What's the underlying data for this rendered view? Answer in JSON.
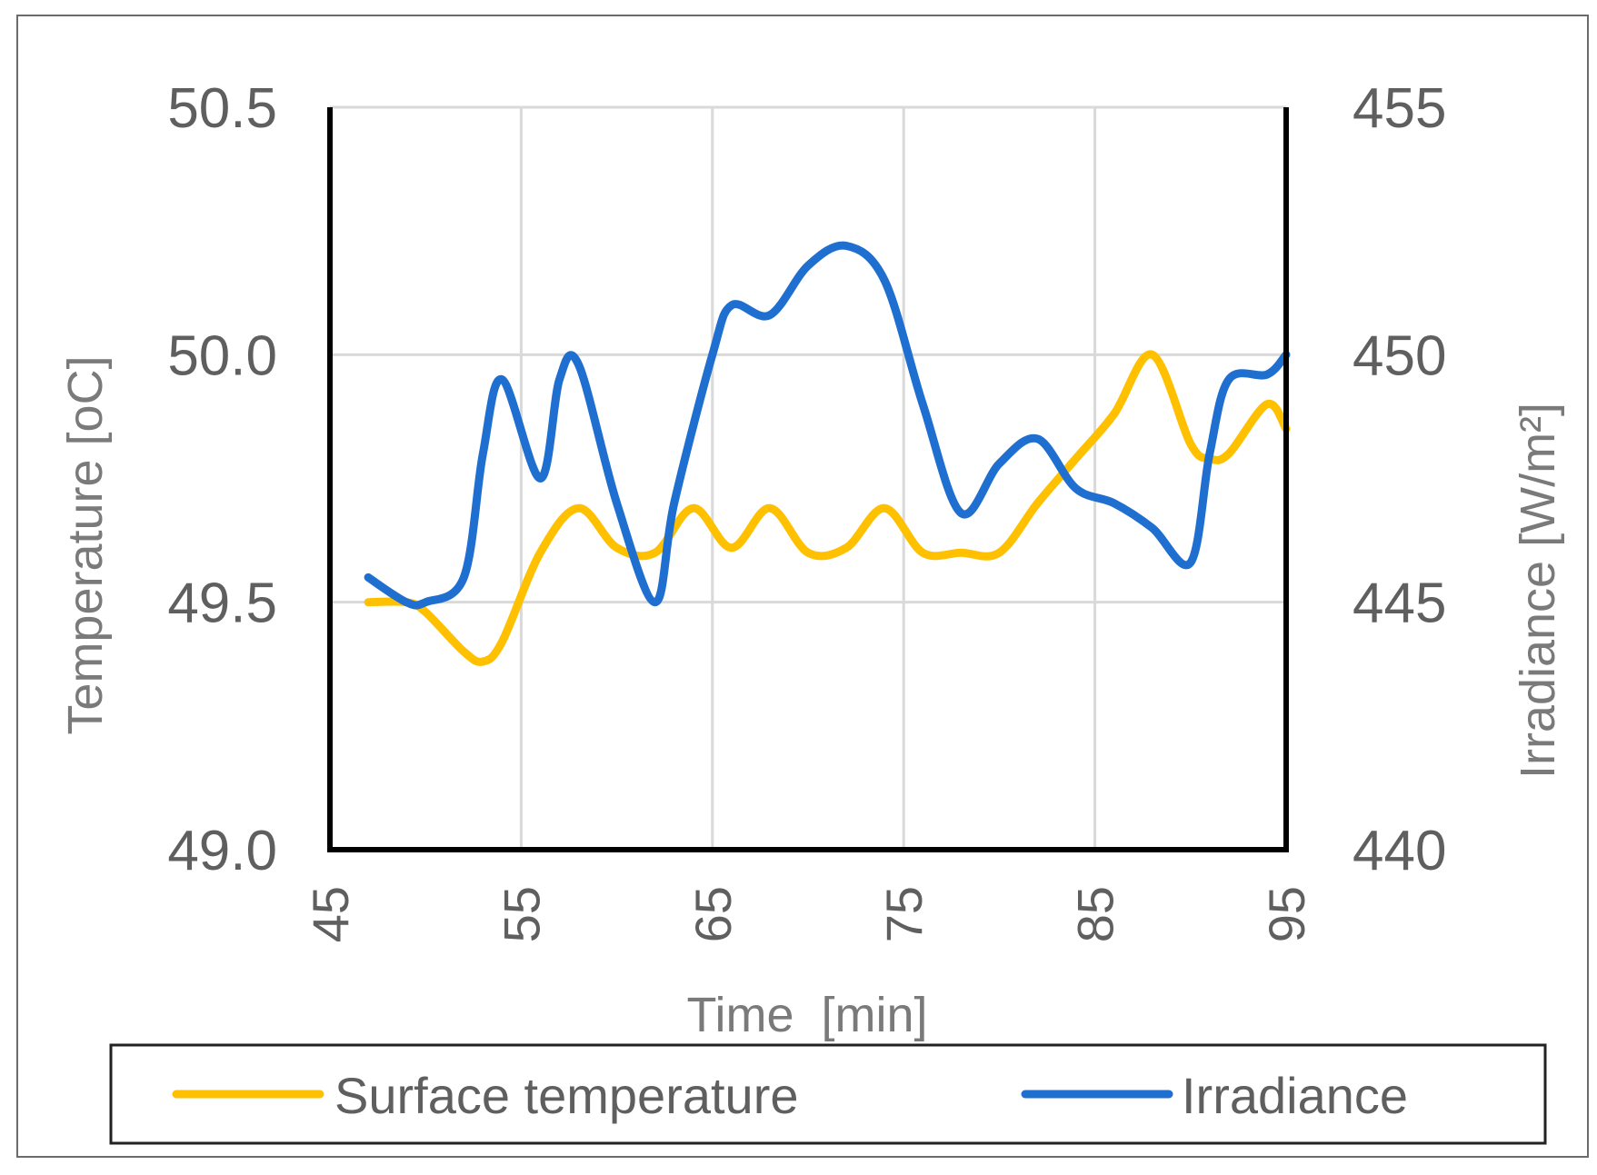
{
  "chart_data": {
    "type": "line",
    "xlabel": "Time  [min]",
    "ylabel": "Temperature [oC]",
    "y2label": "Irradiance [W/m²]",
    "xlim": [
      45,
      95
    ],
    "ylim": [
      49.0,
      50.5
    ],
    "y2lim": [
      440,
      455
    ],
    "x_ticks": [
      "45",
      "55",
      "65",
      "75",
      "85",
      "95"
    ],
    "y_ticks": [
      "49.0",
      "49.5",
      "50.0",
      "50.5"
    ],
    "y2_ticks": [
      "440",
      "445",
      "450",
      "455"
    ],
    "grid": true,
    "legend_position": "bottom",
    "series": [
      {
        "name": "Surface temperature",
        "axis": "left",
        "color": "#FFC000",
        "x": [
          47,
          49,
          50,
          52,
          53,
          54,
          56,
          58,
          60,
          62,
          64,
          66,
          68,
          70,
          72,
          74,
          76,
          78,
          80,
          82,
          84,
          86,
          88,
          90,
          91,
          92,
          94,
          95
        ],
        "y": [
          49.5,
          49.5,
          49.48,
          49.4,
          49.38,
          49.42,
          49.6,
          49.69,
          49.61,
          49.6,
          49.69,
          49.61,
          49.69,
          49.6,
          49.61,
          49.69,
          49.6,
          49.6,
          49.6,
          49.7,
          49.79,
          49.88,
          50.0,
          49.82,
          49.79,
          49.8,
          49.9,
          49.85
        ]
      },
      {
        "name": "Irradiance",
        "axis": "right",
        "color": "#1F6FD0",
        "x": [
          47,
          49,
          50,
          52,
          53,
          54,
          56,
          57,
          58,
          60,
          62,
          63,
          65,
          66,
          68,
          70,
          72,
          74,
          76,
          78,
          80,
          82,
          84,
          86,
          88,
          90,
          91,
          92,
          94,
          95
        ],
        "y": [
          445.5,
          445.0,
          445.0,
          445.5,
          448.0,
          449.5,
          447.5,
          449.5,
          449.8,
          447.0,
          445.0,
          447.0,
          450.0,
          451.0,
          450.8,
          451.8,
          452.2,
          451.5,
          449.0,
          446.8,
          447.8,
          448.3,
          447.3,
          447.0,
          446.5,
          445.8,
          448.0,
          449.5,
          449.6,
          450.0
        ]
      }
    ]
  }
}
